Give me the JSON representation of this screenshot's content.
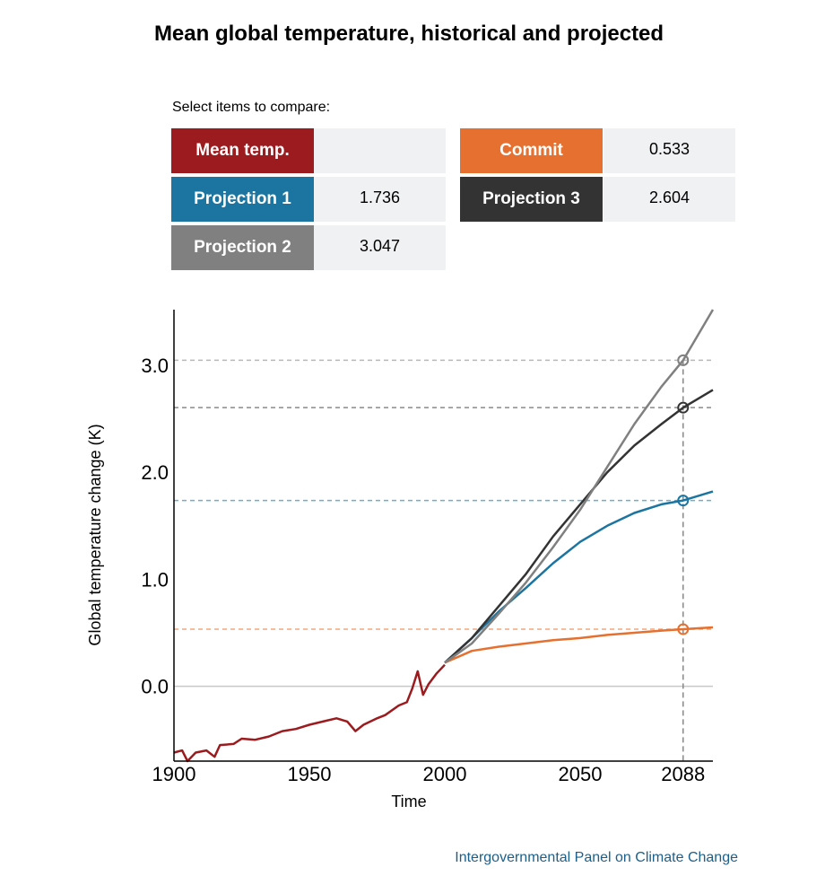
{
  "title": "Mean global temperature, historical and projected",
  "select_label": "Select items to compare:",
  "items": [
    {
      "label": "Mean temp.",
      "value": "",
      "color": "#9b1b1e"
    },
    {
      "label": "Commit",
      "value": "0.533",
      "color": "#e5702f"
    },
    {
      "label": "Projection 1",
      "value": "1.736",
      "color": "#1b75a0"
    },
    {
      "label": "Projection 3",
      "value": "2.604",
      "color": "#333333"
    },
    {
      "label": "Projection 2",
      "value": "3.047",
      "color": "#808080"
    }
  ],
  "source": "Intergovernmental Panel on Climate Change",
  "chart_data": {
    "type": "line",
    "xlabel": "Time",
    "ylabel": "Global temperature change (K)",
    "xlim": [
      1900,
      2099
    ],
    "ylim": [
      -0.7,
      3.52
    ],
    "xticks": [
      "1900",
      "1950",
      "2000",
      "2050",
      "2088"
    ],
    "xtick_values": [
      1900,
      1950,
      2000,
      2050,
      2088
    ],
    "yticks": [
      "0.0",
      "1.0",
      "2.0",
      "3.0"
    ],
    "ytick_values": [
      0,
      1,
      2,
      3
    ],
    "selected_year": 2088,
    "series": [
      {
        "name": "Mean temp.",
        "color": "#9b1b1e",
        "points": [
          [
            1900,
            -0.62
          ],
          [
            1903,
            -0.6
          ],
          [
            1905,
            -0.7
          ],
          [
            1908,
            -0.62
          ],
          [
            1912,
            -0.6
          ],
          [
            1915,
            -0.66
          ],
          [
            1917,
            -0.55
          ],
          [
            1922,
            -0.54
          ],
          [
            1925,
            -0.49
          ],
          [
            1930,
            -0.5
          ],
          [
            1935,
            -0.47
          ],
          [
            1940,
            -0.42
          ],
          [
            1945,
            -0.4
          ],
          [
            1950,
            -0.36
          ],
          [
            1955,
            -0.33
          ],
          [
            1960,
            -0.3
          ],
          [
            1964,
            -0.33
          ],
          [
            1967,
            -0.42
          ],
          [
            1970,
            -0.36
          ],
          [
            1975,
            -0.3
          ],
          [
            1978,
            -0.27
          ],
          [
            1983,
            -0.18
          ],
          [
            1986,
            -0.15
          ],
          [
            1988,
            -0.02
          ],
          [
            1990,
            0.14
          ],
          [
            1992,
            -0.08
          ],
          [
            1994,
            0.02
          ],
          [
            1997,
            0.12
          ],
          [
            2000,
            0.2
          ]
        ]
      },
      {
        "name": "Commit",
        "color": "#e5702f",
        "points": [
          [
            2000,
            0.22
          ],
          [
            2010,
            0.33
          ],
          [
            2020,
            0.37
          ],
          [
            2030,
            0.4
          ],
          [
            2040,
            0.43
          ],
          [
            2050,
            0.45
          ],
          [
            2060,
            0.48
          ],
          [
            2070,
            0.5
          ],
          [
            2080,
            0.52
          ],
          [
            2088,
            0.533
          ],
          [
            2099,
            0.55
          ]
        ]
      },
      {
        "name": "Projection 1",
        "color": "#1b75a0",
        "points": [
          [
            2000,
            0.22
          ],
          [
            2010,
            0.45
          ],
          [
            2020,
            0.7
          ],
          [
            2030,
            0.92
          ],
          [
            2040,
            1.15
          ],
          [
            2050,
            1.35
          ],
          [
            2060,
            1.5
          ],
          [
            2070,
            1.62
          ],
          [
            2080,
            1.7
          ],
          [
            2088,
            1.736
          ],
          [
            2099,
            1.82
          ]
        ]
      },
      {
        "name": "Projection 3",
        "color": "#333333",
        "points": [
          [
            2000,
            0.22
          ],
          [
            2010,
            0.45
          ],
          [
            2020,
            0.75
          ],
          [
            2030,
            1.05
          ],
          [
            2040,
            1.4
          ],
          [
            2050,
            1.7
          ],
          [
            2060,
            2.0
          ],
          [
            2070,
            2.25
          ],
          [
            2080,
            2.45
          ],
          [
            2088,
            2.604
          ],
          [
            2099,
            2.77
          ]
        ]
      },
      {
        "name": "Projection 2",
        "color": "#808080",
        "points": [
          [
            2000,
            0.22
          ],
          [
            2010,
            0.4
          ],
          [
            2020,
            0.68
          ],
          [
            2030,
            0.97
          ],
          [
            2040,
            1.3
          ],
          [
            2050,
            1.65
          ],
          [
            2060,
            2.05
          ],
          [
            2070,
            2.45
          ],
          [
            2080,
            2.8
          ],
          [
            2088,
            3.047
          ],
          [
            2099,
            3.52
          ]
        ]
      }
    ]
  }
}
